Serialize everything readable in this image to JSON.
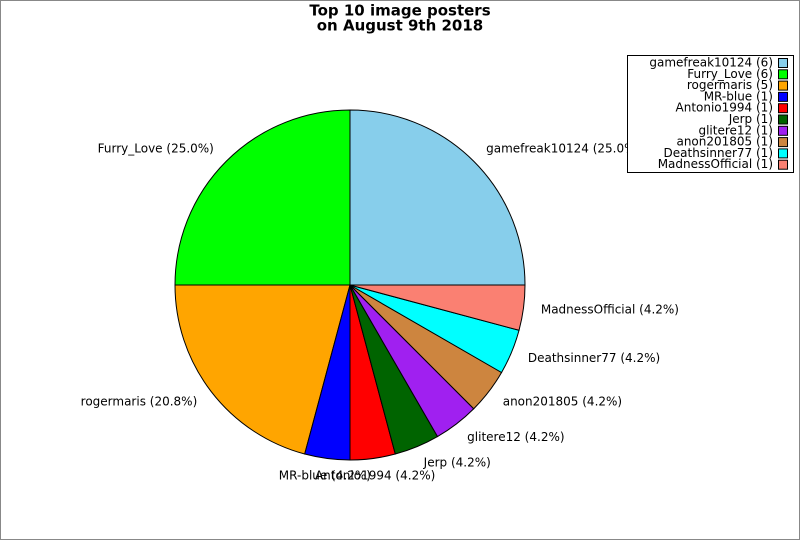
{
  "chart_data": {
    "type": "pie",
    "title": [
      "Top 10 image posters",
      "on August 9th 2018"
    ],
    "categories": [
      "gamefreak10124",
      "Furry_Love",
      "rogermaris",
      "MR-blue",
      "Antonio1994",
      "Jerp",
      "glitere12",
      "anon201805",
      "Deathsinner77",
      "MadnessOfficial"
    ],
    "values": [
      6,
      6,
      5,
      1,
      1,
      1,
      1,
      1,
      1,
      1
    ],
    "legend_labels": [
      "gamefreak10124 (6)",
      "Furry_Love (6)",
      "rogermaris (5)",
      "MR-blue (1)",
      "Antonio1994 (1)",
      "Jerp (1)",
      "glitere12 (1)",
      "anon201805 (1)",
      "Deathsinner77 (1)",
      "MadnessOfficial (1)"
    ],
    "value_labels": [
      "gamefreak10124 (25.0%)",
      "Furry_Love (25.0%)",
      "rogermaris (20.8%)",
      "MR-blue (4.2%)",
      "Antonio1994 (4.2%)",
      "Jerp (4.2%)",
      "glitere12 (4.2%)",
      "anon201805 (4.2%)",
      "Deathsinner77 (4.2%)",
      "MadnessOfficial (4.2%)"
    ],
    "colors": [
      "#87ceeb",
      "#00ff00",
      "#ffa500",
      "#0000ff",
      "#ff0000",
      "#006400",
      "#a020f0",
      "#cd853f",
      "#00ffff",
      "#fa8072"
    ],
    "legend": "upper right"
  }
}
